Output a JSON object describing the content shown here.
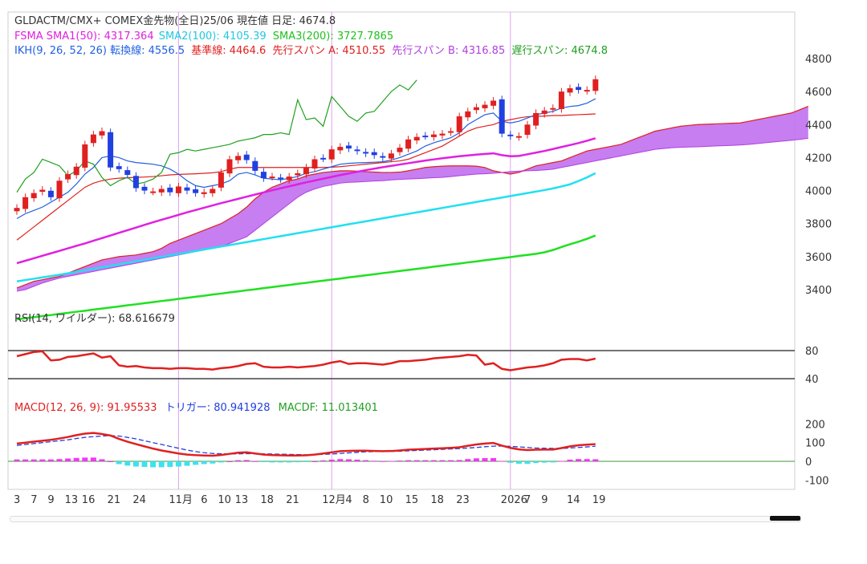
{
  "header": {
    "line1": "GLDACTM/CMX+ COMEX金先物(全日)25/06  現在値 日足: 4674.8",
    "sma": [
      {
        "text": "FSMA SMA1(50): 4317.364",
        "color": "#e020e0"
      },
      {
        "text": "SMA2(100): 4105.39",
        "color": "#20d0e0"
      },
      {
        "text": "SMA3(200): 3727.7865",
        "color": "#20c020"
      }
    ],
    "ikh": [
      {
        "text": "IKH(9, 26, 52, 26) 転換線: 4556.5",
        "color": "#2060e0"
      },
      {
        "text": "基準線: 4464.6",
        "color": "#e02020"
      },
      {
        "text": "先行スパン A: 4510.55",
        "color": "#e02020"
      },
      {
        "text": "先行スパン B: 4316.85",
        "color": "#b040e0"
      },
      {
        "text": "遅行スパン: 4674.8",
        "color": "#20a020"
      }
    ]
  },
  "rsi_label": "RSI(14, ワイルダー): 68.616679",
  "macd_labels": [
    {
      "text": "MACD(12, 26, 9): 91.95533",
      "color": "#e02020"
    },
    {
      "text": "トリガー: 80.941928",
      "color": "#2040e0"
    },
    {
      "text": "MACDF: 11.013401",
      "color": "#20a020"
    }
  ],
  "price_axis": [
    "4800",
    "4600",
    "4400",
    "4200",
    "4000",
    "3800",
    "3600",
    "3400"
  ],
  "rsi_axis": [
    "80",
    "40"
  ],
  "macd_axis": [
    "200",
    "100",
    "0",
    "-100"
  ],
  "x_labels": [
    {
      "text": "3",
      "i": 0,
      "month": false
    },
    {
      "text": "7",
      "i": 2,
      "month": false
    },
    {
      "text": "9",
      "i": 4,
      "month": false
    },
    {
      "text": "13",
      "i": 6,
      "month": false
    },
    {
      "text": "16",
      "i": 8,
      "month": false
    },
    {
      "text": "21",
      "i": 11,
      "month": false
    },
    {
      "text": "24",
      "i": 14,
      "month": false
    },
    {
      "text": "11月",
      "i": 19,
      "month": true
    },
    {
      "text": "6",
      "i": 22,
      "month": false
    },
    {
      "text": "10",
      "i": 24,
      "month": false
    },
    {
      "text": "13",
      "i": 26,
      "month": false
    },
    {
      "text": "18",
      "i": 29,
      "month": false
    },
    {
      "text": "21",
      "i": 32,
      "month": false
    },
    {
      "text": "12月",
      "i": 37,
      "month": true
    },
    {
      "text": "4",
      "i": 39,
      "month": false
    },
    {
      "text": "8",
      "i": 41,
      "month": false
    },
    {
      "text": "10",
      "i": 43,
      "month": false
    },
    {
      "text": "15",
      "i": 46,
      "month": false
    },
    {
      "text": "18",
      "i": 49,
      "month": false
    },
    {
      "text": "23",
      "i": 52,
      "month": false
    },
    {
      "text": "2026",
      "i": 58,
      "month": true
    },
    {
      "text": "7",
      "i": 60,
      "month": false
    },
    {
      "text": "9",
      "i": 62,
      "month": false
    },
    {
      "text": "14",
      "i": 65,
      "month": false
    },
    {
      "text": "19",
      "i": 68,
      "month": false
    }
  ],
  "colors": {
    "up": "#e02020",
    "down": "#2040e0",
    "sma1": "#e020e0",
    "sma2": "#20e0f0",
    "sma3": "#20e020",
    "tenkan": "#2060e0",
    "kijun": "#e02020",
    "chikou": "#20a020",
    "kumo": "#c070f0",
    "kumo_edge": "#e02020",
    "rsi": "#e02020",
    "macd": "#e02020",
    "trigger": "#2040e0",
    "hist": "#ff30ff",
    "hist_neg": "#40e0f0",
    "month_line": "#e0a0f0"
  },
  "chart_data": {
    "type": "candlestick",
    "title": "GLDACTM/CMX+ COMEX金先物(全日)25/06",
    "close": [
      3895,
      3960,
      3985,
      4005,
      3960,
      4060,
      4100,
      4145,
      4280,
      4340,
      4360,
      4140,
      4130,
      4095,
      4015,
      4000,
      3995,
      4010,
      3990,
      4025,
      4000,
      3985,
      3990,
      4010,
      4110,
      4190,
      4210,
      4185,
      4120,
      4075,
      4085,
      4070,
      4085,
      4105,
      4140,
      4190,
      4195,
      4250,
      4265,
      4255,
      4240,
      4225,
      4215,
      4200,
      4225,
      4260,
      4310,
      4325,
      4330,
      4340,
      4345,
      4360,
      4450,
      4480,
      4505,
      4520,
      4545,
      4345,
      4330,
      4330,
      4400,
      4470,
      4485,
      4500,
      4600,
      4620,
      4610,
      4610,
      4674.8
    ],
    "sma1": [
      3560,
      3575,
      3590,
      3605,
      3620,
      3635,
      3650,
      3665,
      3680,
      3696,
      3712,
      3728,
      3744,
      3760,
      3776,
      3792,
      3808,
      3823,
      3838,
      3853,
      3868,
      3882,
      3896,
      3910,
      3924,
      3937,
      3950,
      3963,
      3976,
      3989,
      4002,
      4014,
      4026,
      4038,
      4050,
      4061,
      4072,
      4083,
      4094,
      4104,
      4114,
      4124,
      4133,
      4142,
      4150,
      4158,
      4166,
      4174,
      4182,
      4189,
      4196,
      4202,
      4208,
      4213,
      4218,
      4222,
      4226,
      4215,
      4208,
      4210,
      4220,
      4230,
      4240,
      4252,
      4264,
      4276,
      4288,
      4302,
      4317.4
    ],
    "sma2": [
      3450,
      3458,
      3466,
      3474,
      3482,
      3490,
      3499,
      3508,
      3517,
      3526,
      3535,
      3544,
      3553,
      3562,
      3571,
      3580,
      3589,
      3598,
      3607,
      3616,
      3625,
      3634,
      3643,
      3652,
      3661,
      3670,
      3679,
      3688,
      3697,
      3706,
      3715,
      3724,
      3733,
      3742,
      3751,
      3760,
      3769,
      3778,
      3787,
      3796,
      3805,
      3814,
      3823,
      3832,
      3841,
      3850,
      3859,
      3868,
      3877,
      3886,
      3895,
      3904,
      3913,
      3922,
      3931,
      3940,
      3949,
      3958,
      3967,
      3976,
      3985,
      3994,
      4003,
      4013,
      4025,
      4038,
      4058,
      4080,
      4105.4
    ],
    "sma3": [
      3220,
      3227,
      3233,
      3240,
      3246,
      3253,
      3259,
      3266,
      3272,
      3279,
      3285,
      3292,
      3298,
      3305,
      3311,
      3318,
      3324,
      3331,
      3337,
      3344,
      3350,
      3357,
      3363,
      3370,
      3376,
      3383,
      3389,
      3396,
      3402,
      3409,
      3415,
      3422,
      3428,
      3435,
      3441,
      3448,
      3454,
      3461,
      3467,
      3474,
      3480,
      3487,
      3493,
      3500,
      3506,
      3513,
      3519,
      3526,
      3532,
      3539,
      3545,
      3552,
      3558,
      3565,
      3571,
      3578,
      3584,
      3591,
      3597,
      3604,
      3610,
      3617,
      3626,
      3640,
      3658,
      3675,
      3690,
      3708,
      3727.8
    ],
    "tenkan": [
      3830,
      3860,
      3880,
      3900,
      3930,
      3960,
      3990,
      4040,
      4100,
      4140,
      4200,
      4210,
      4200,
      4180,
      4170,
      4165,
      4160,
      4150,
      4130,
      4100,
      4060,
      4030,
      4020,
      4030,
      4040,
      4060,
      4100,
      4110,
      4095,
      4075,
      4070,
      4065,
      4075,
      4085,
      4105,
      4115,
      4130,
      4145,
      4160,
      4165,
      4168,
      4170,
      4172,
      4175,
      4185,
      4200,
      4220,
      4240,
      4270,
      4290,
      4305,
      4320,
      4350,
      4400,
      4430,
      4460,
      4470,
      4420,
      4410,
      4420,
      4440,
      4460,
      4470,
      4480,
      4500,
      4510,
      4515,
      4530,
      4556.5
    ],
    "kijun": [
      3700,
      3740,
      3780,
      3820,
      3860,
      3900,
      3940,
      3980,
      4020,
      4045,
      4060,
      4070,
      4075,
      4078,
      4080,
      4082,
      4085,
      4090,
      4095,
      4098,
      4100,
      4102,
      4105,
      4108,
      4115,
      4130,
      4140,
      4140,
      4140,
      4140,
      4140,
      4140,
      4140,
      4140,
      4140,
      4140,
      4140,
      4142,
      4145,
      4150,
      4155,
      4160,
      4165,
      4170,
      4175,
      4180,
      4190,
      4210,
      4230,
      4250,
      4270,
      4300,
      4330,
      4360,
      4380,
      4390,
      4400,
      4420,
      4430,
      4440,
      4448,
      4450,
      4452,
      4455,
      4455,
      4458,
      4460,
      4462,
      4464.6
    ],
    "span_a": [
      3410,
      3430,
      3450,
      3460,
      3470,
      3480,
      3500,
      3520,
      3540,
      3560,
      3580,
      3590,
      3600,
      3605,
      3610,
      3620,
      3630,
      3650,
      3680,
      3700,
      3720,
      3740,
      3760,
      3780,
      3800,
      3830,
      3860,
      3900,
      3950,
      3990,
      4020,
      4040,
      4060,
      4070,
      4090,
      4100,
      4110,
      4115,
      4120,
      4120,
      4118,
      4115,
      4112,
      4110,
      4110,
      4112,
      4120,
      4130,
      4140,
      4145,
      4148,
      4150,
      4150,
      4150,
      4148,
      4140,
      4120,
      4110,
      4100,
      4110,
      4130,
      4150,
      4160,
      4170,
      4180,
      4200,
      4220,
      4240,
      4250,
      4260,
      4270,
      4280,
      4300,
      4320,
      4340,
      4360,
      4370,
      4380,
      4390,
      4395,
      4400,
      4402,
      4404,
      4406,
      4408,
      4410,
      4420,
      4430,
      4440,
      4450,
      4460,
      4470,
      4490,
      4510.5
    ],
    "span_b": [
      3390,
      3400,
      3420,
      3440,
      3455,
      3470,
      3480,
      3490,
      3500,
      3510,
      3520,
      3530,
      3540,
      3550,
      3560,
      3570,
      3580,
      3590,
      3600,
      3610,
      3620,
      3630,
      3640,
      3650,
      3660,
      3680,
      3700,
      3720,
      3760,
      3800,
      3840,
      3880,
      3920,
      3960,
      3990,
      4010,
      4025,
      4035,
      4045,
      4050,
      4052,
      4055,
      4058,
      4060,
      4065,
      4068,
      4070,
      4072,
      4075,
      4078,
      4080,
      4085,
      4090,
      4095,
      4100,
      4102,
      4105,
      4110,
      4115,
      4118,
      4120,
      4122,
      4125,
      4130,
      4140,
      4150,
      4160,
      4170,
      4180,
      4190,
      4200,
      4210,
      4220,
      4230,
      4240,
      4250,
      4255,
      4260,
      4262,
      4264,
      4265,
      4268,
      4270,
      4272,
      4274,
      4276,
      4280,
      4285,
      4290,
      4295,
      4300,
      4305,
      4310,
      4316.9
    ],
    "chikou": [
      3990,
      4070,
      4110,
      4190,
      4170,
      4150,
      4090,
      4120,
      4180,
      4160,
      4080,
      4030,
      4060,
      4080,
      4040,
      4050,
      4070,
      4110,
      4220,
      4230,
      4250,
      4240,
      4250,
      4260,
      4270,
      4280,
      4300,
      4310,
      4320,
      4340,
      4340,
      4350,
      4340,
      4550,
      4430,
      4440,
      4390,
      4570,
      4510,
      4450,
      4420,
      4470,
      4480,
      4540,
      4600,
      4640,
      4610,
      4670
    ],
    "rsi": [
      72,
      75,
      78,
      79,
      66,
      67,
      71,
      72,
      74,
      76,
      70,
      72,
      59,
      57,
      58,
      56,
      55,
      55,
      54,
      55,
      55,
      54,
      54,
      53,
      55,
      56,
      58,
      61,
      62,
      57,
      56,
      56,
      57,
      56,
      57,
      58,
      60,
      63,
      65,
      61,
      62,
      62,
      61,
      60,
      62,
      65,
      65,
      66,
      67,
      69,
      70,
      71,
      72,
      74,
      73,
      60,
      62,
      54,
      52,
      54,
      56,
      57,
      59,
      62,
      67,
      68,
      68,
      66,
      68.6
    ],
    "macd": [
      95,
      100,
      105,
      110,
      115,
      122,
      130,
      140,
      148,
      152,
      146,
      138,
      120,
      105,
      92,
      80,
      68,
      58,
      50,
      42,
      36,
      33,
      31,
      30,
      34,
      40,
      46,
      48,
      42,
      36,
      33,
      32,
      31,
      31,
      32,
      36,
      42,
      48,
      54,
      56,
      57,
      57,
      55,
      54,
      55,
      58,
      62,
      64,
      66,
      68,
      70,
      72,
      75,
      83,
      90,
      95,
      98,
      84,
      72,
      64,
      60,
      62,
      63,
      63,
      71,
      80,
      86,
      89,
      92
    ],
    "trigger": [
      85,
      90,
      95,
      100,
      105,
      110,
      115,
      122,
      128,
      132,
      135,
      138,
      135,
      128,
      120,
      110,
      100,
      90,
      80,
      70,
      60,
      52,
      46,
      42,
      40,
      40,
      40,
      41,
      41,
      40,
      39,
      38,
      37,
      36,
      35,
      36,
      37,
      39,
      42,
      45,
      48,
      51,
      52,
      53,
      53,
      54,
      56,
      58,
      60,
      62,
      64,
      66,
      68,
      71,
      74,
      78,
      81,
      82,
      80,
      77,
      74,
      71,
      70,
      69,
      69,
      71,
      74,
      77,
      80.9
    ],
    "macdf": [
      10,
      10,
      10,
      10,
      10,
      12,
      15,
      18,
      20,
      20,
      11,
      0,
      -15,
      -23,
      -28,
      -30,
      -32,
      -32,
      -30,
      -28,
      -24,
      -19,
      -15,
      -12,
      -6,
      0,
      6,
      7,
      1,
      -4,
      -6,
      -6,
      -6,
      -5,
      -3,
      0,
      5,
      9,
      12,
      11,
      9,
      6,
      3,
      1,
      2,
      4,
      6,
      6,
      6,
      6,
      6,
      6,
      7,
      12,
      16,
      17,
      17,
      2,
      -8,
      -13,
      -14,
      -9,
      -7,
      -6,
      2,
      9,
      12,
      12,
      11
    ],
    "price_range": [
      3300,
      4900
    ],
    "rsi_lines": [
      80,
      40
    ],
    "macd_range": [
      -140,
      260
    ]
  }
}
